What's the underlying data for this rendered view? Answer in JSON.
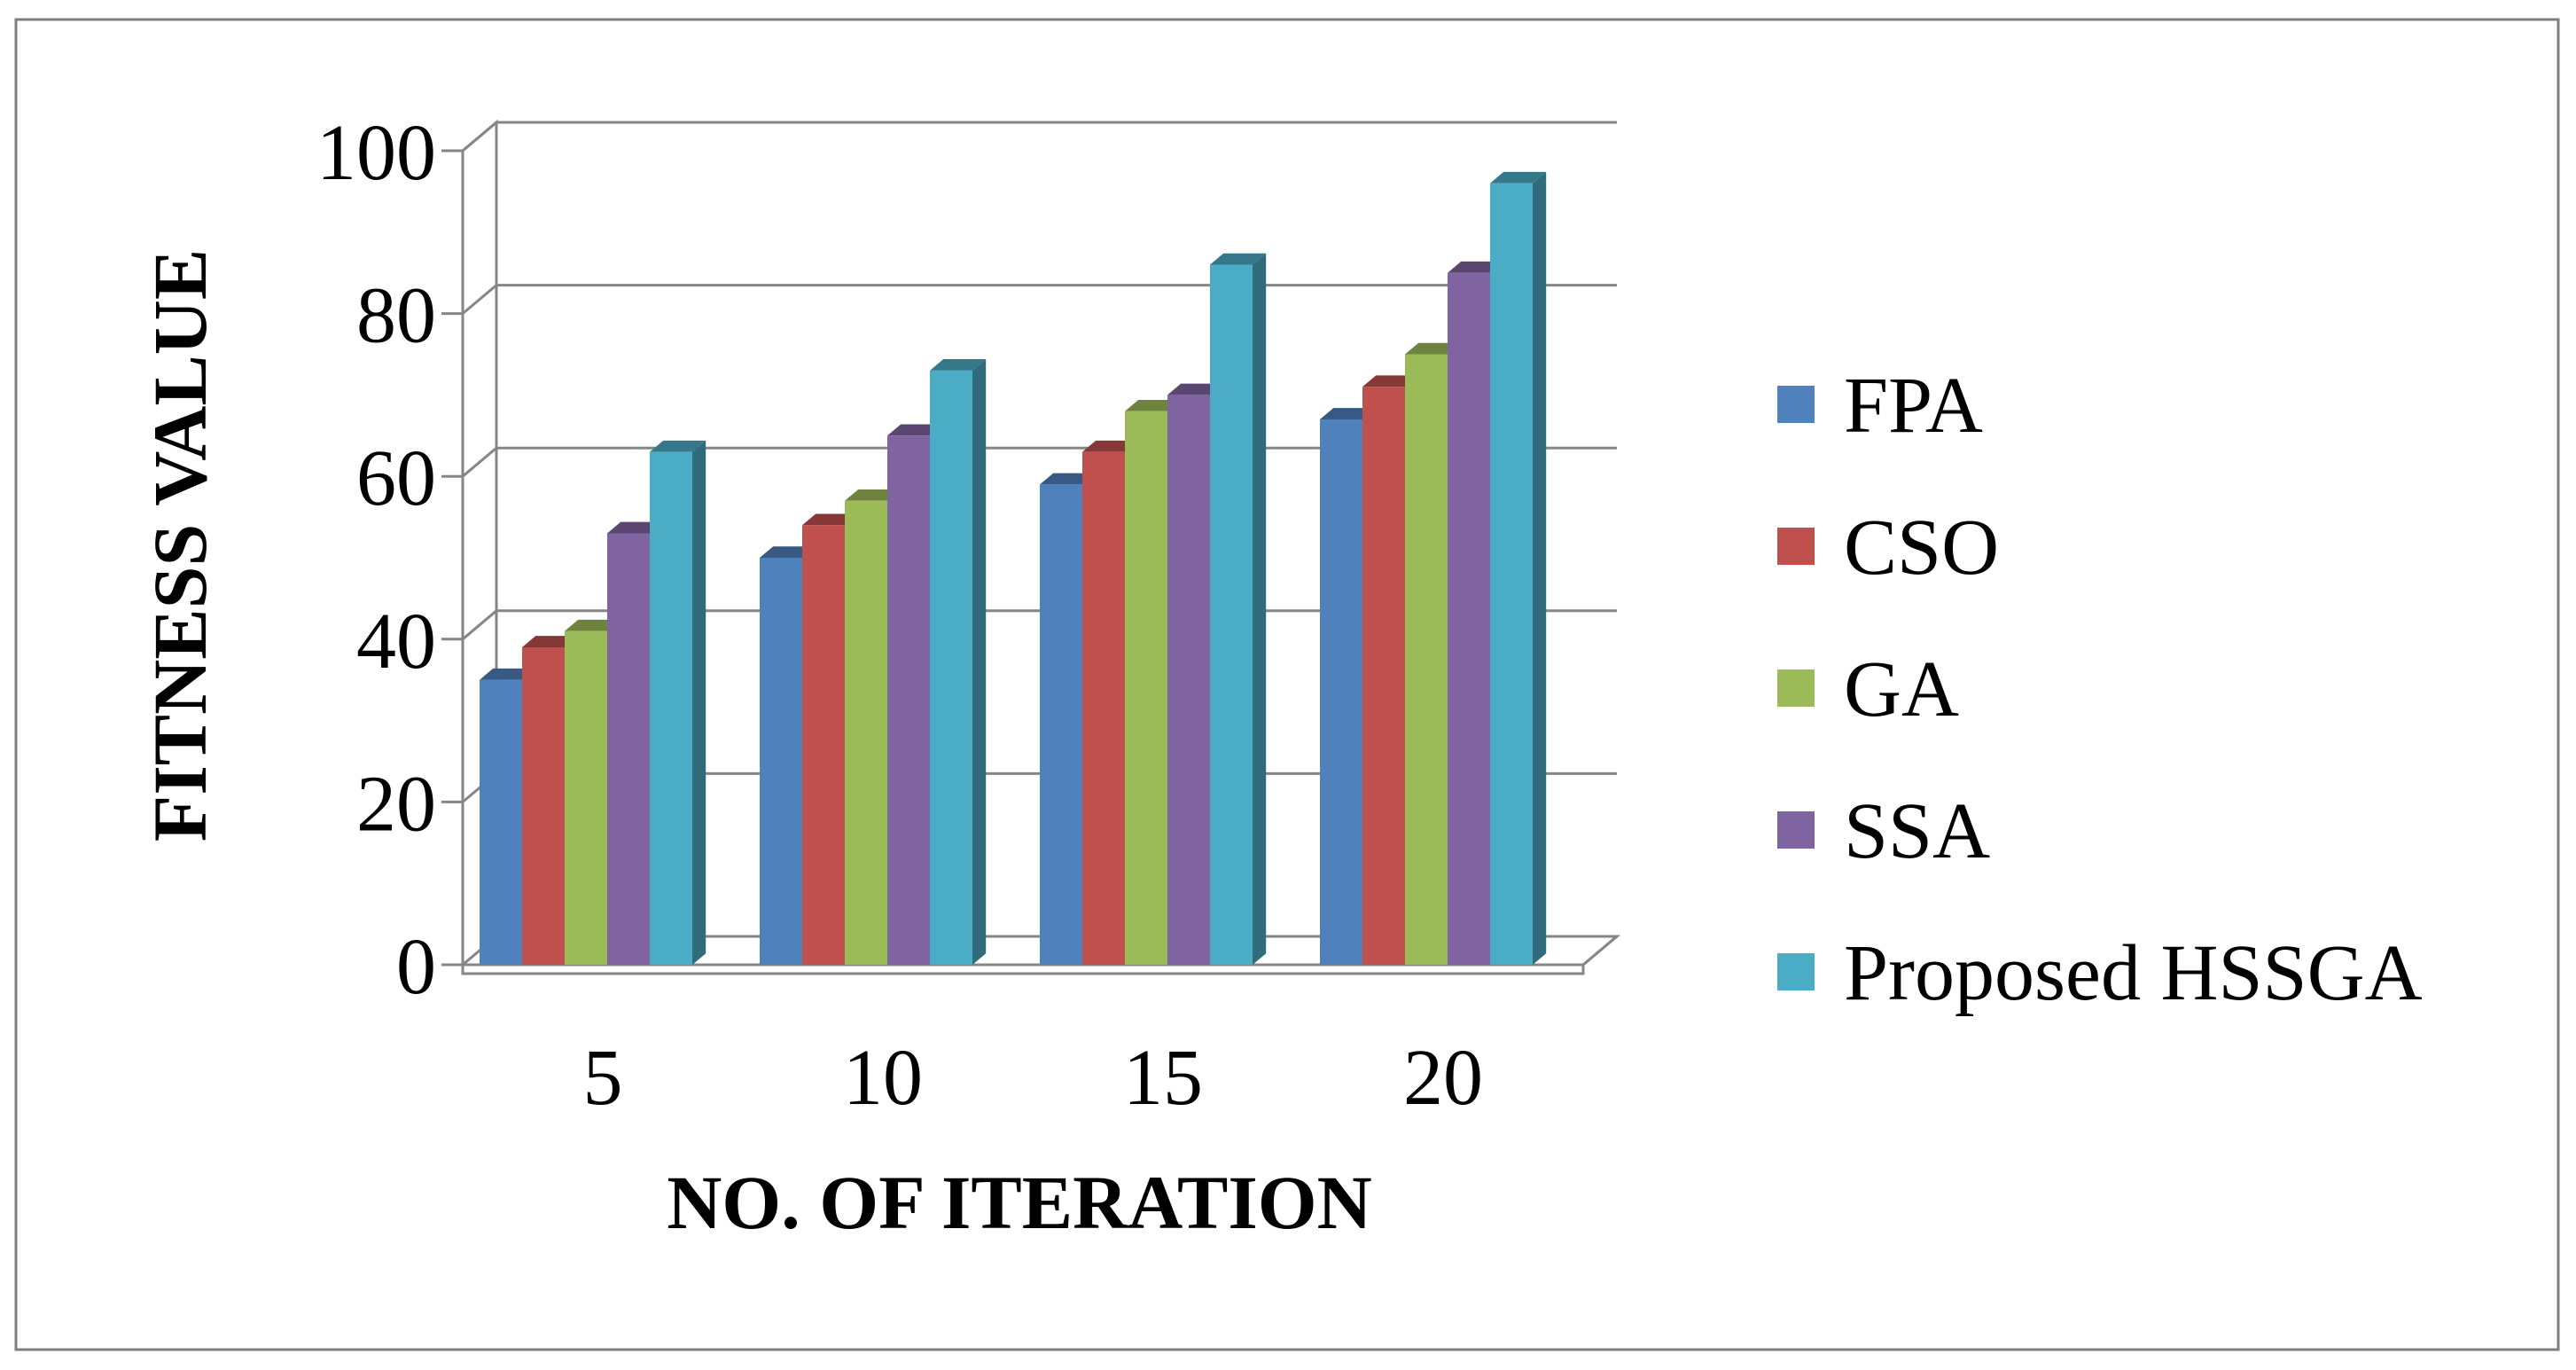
{
  "chart_data": {
    "type": "bar",
    "title": "",
    "xlabel": "NO. OF ITERATION",
    "ylabel": "FITNESS VALUE",
    "categories": [
      "5",
      "10",
      "15",
      "20"
    ],
    "ylim": [
      0,
      100
    ],
    "yticks": [
      "0",
      "20",
      "40",
      "60",
      "80",
      "100"
    ],
    "grid": true,
    "legend_position": "right",
    "series": [
      {
        "name": "FPA",
        "color": "#4F81BD",
        "values": [
          35,
          50,
          59,
          67
        ]
      },
      {
        "name": "CSO",
        "color": "#C0504D",
        "values": [
          39,
          54,
          63,
          71
        ]
      },
      {
        "name": "GA",
        "color": "#9BBB59",
        "values": [
          41,
          57,
          68,
          75
        ]
      },
      {
        "name": "SSA",
        "color": "#8064A2",
        "values": [
          53,
          65,
          70,
          85
        ]
      },
      {
        "name": "Proposed HSSGA",
        "color": "#4BACC6",
        "values": [
          63,
          73,
          86,
          96
        ]
      }
    ]
  }
}
